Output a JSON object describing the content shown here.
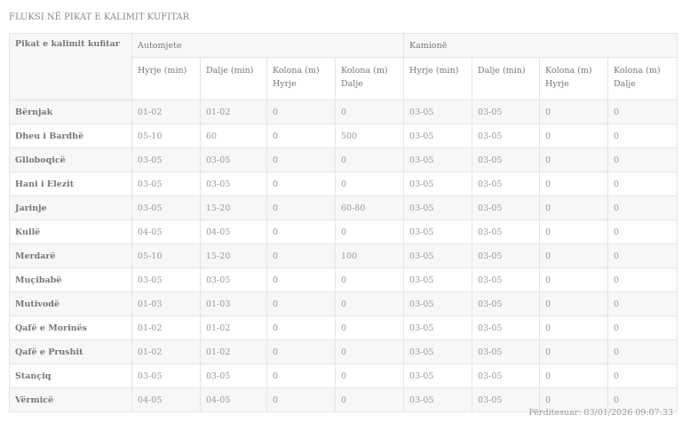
{
  "title": "FLUKSI NË PIKAT E KALIMIT KUFITAR",
  "table": {
    "first_header": "Pikat e kalimit kufitar",
    "groups": [
      "Automjete",
      "Kamionë"
    ],
    "subheaders": [
      "Hyrje (min)",
      "Dalje (min)",
      "Kolona (m) Hyrje",
      "Kolona (m) Dalje",
      "Hyrje (min)",
      "Dalje (min)",
      "Kolona (m) Hyrje",
      "Kolona (m) Dalje"
    ],
    "rows": [
      [
        "Bërnjak",
        "01-02",
        "01-02",
        "0",
        "0",
        "03-05",
        "03-05",
        "0",
        "0"
      ],
      [
        "Dheu i Bardhë",
        "05-10",
        "60",
        "0",
        "500",
        "03-05",
        "03-05",
        "0",
        "0"
      ],
      [
        "Glloboqicë",
        "03-05",
        "03-05",
        "0",
        "0",
        "03-05",
        "03-05",
        "0",
        "0"
      ],
      [
        "Hani i Elezit",
        "03-05",
        "03-05",
        "0",
        "0",
        "03-05",
        "03-05",
        "0",
        "0"
      ],
      [
        "Jarinje",
        "03-05",
        "15-20",
        "0",
        "60-80",
        "03-05",
        "03-05",
        "0",
        "0"
      ],
      [
        "Kullë",
        "04-05",
        "04-05",
        "0",
        "0",
        "03-05",
        "03-05",
        "0",
        "0"
      ],
      [
        "Merdarë",
        "05-10",
        "15-20",
        "0",
        "100",
        "03-05",
        "03-05",
        "0",
        "0"
      ],
      [
        "Muçibabë",
        "03-05",
        "03-05",
        "0",
        "0",
        "03-05",
        "03-05",
        "0",
        "0"
      ],
      [
        "Mutivodë",
        "01-03",
        "01-03",
        "0",
        "0",
        "03-05",
        "03-05",
        "0",
        "0"
      ],
      [
        "Qafë e Morinës",
        "01-02",
        "01-02",
        "0",
        "0",
        "03-05",
        "03-05",
        "0",
        "0"
      ],
      [
        "Qafë e Prushit",
        "01-02",
        "01-02",
        "0",
        "0",
        "03-05",
        "03-05",
        "0",
        "0"
      ],
      [
        "Stançiq",
        "03-05",
        "03-05",
        "0",
        "0",
        "03-05",
        "03-05",
        "0",
        "0"
      ],
      [
        "Vërmicë",
        "04-05",
        "04-05",
        "0",
        "0",
        "03-05",
        "03-05",
        "0",
        "0"
      ]
    ]
  },
  "footer": "Përditesuar: 03/01/2026 09:07:33"
}
